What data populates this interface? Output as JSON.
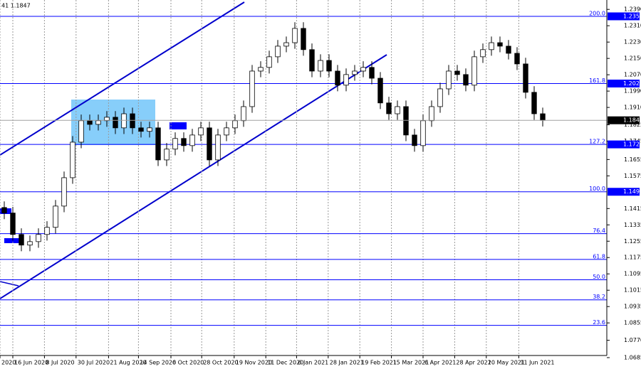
{
  "chart_data": {
    "type": "candlestick",
    "info": "41 1.1847",
    "x": [
      0,
      1,
      2,
      3,
      4,
      5,
      6,
      7,
      8,
      9,
      10,
      11,
      12,
      13,
      14,
      15,
      16,
      17,
      18,
      19,
      20,
      21,
      22,
      23,
      24,
      25,
      26,
      27,
      28,
      29,
      30,
      31,
      32,
      33,
      34,
      35,
      36,
      37,
      38,
      39,
      40,
      41,
      42,
      43,
      44,
      45,
      46,
      47,
      48,
      49,
      50,
      51,
      52,
      53,
      54,
      55,
      56,
      57,
      58,
      59,
      60,
      61,
      62,
      63
    ],
    "open": [
      1.142,
      1.1393,
      1.1288,
      1.1236,
      1.1253,
      1.1288,
      1.1323,
      1.1427,
      1.1566,
      1.174,
      1.1845,
      1.1827,
      1.1845,
      1.1862,
      1.181,
      1.1879,
      1.181,
      1.1793,
      1.181,
      1.1653,
      1.1706,
      1.1758,
      1.1723,
      1.1775,
      1.181,
      1.1653,
      1.1775,
      1.181,
      1.1845,
      1.1914,
      1.2088,
      1.2106,
      1.2158,
      1.221,
      1.2227,
      1.2297,
      1.2193,
      1.2088,
      1.214,
      1.2088,
      1.2019,
      1.2071,
      1.2088,
      1.2106,
      1.2053,
      1.1932,
      1.1879,
      1.1914,
      1.1775,
      1.1723,
      1.1845,
      1.1914,
      1.2001,
      1.2088,
      1.2071,
      1.2019,
      1.2158,
      1.2193,
      1.2227,
      1.221,
      1.2175,
      1.2123,
      1.1984,
      1.1879
    ],
    "high": [
      1.145,
      1.1423,
      1.1318,
      1.1283,
      1.1318,
      1.1353,
      1.1457,
      1.1596,
      1.177,
      1.1875,
      1.1875,
      1.1875,
      1.1892,
      1.1892,
      1.1909,
      1.1909,
      1.184,
      1.184,
      1.184,
      1.1736,
      1.1788,
      1.1788,
      1.1805,
      1.184,
      1.184,
      1.1805,
      1.184,
      1.1875,
      1.1944,
      1.2118,
      1.2136,
      1.2188,
      1.224,
      1.2257,
      1.2327,
      1.2327,
      1.2223,
      1.217,
      1.217,
      1.2118,
      1.2101,
      1.2118,
      1.2136,
      1.2136,
      1.2083,
      1.1962,
      1.1944,
      1.1944,
      1.1805,
      1.1875,
      1.1944,
      1.2031,
      1.2118,
      1.2118,
      1.2101,
      1.2188,
      1.2223,
      1.2257,
      1.2257,
      1.224,
      1.2205,
      1.2153,
      1.2014,
      1.1909
    ],
    "low": [
      1.1363,
      1.1258,
      1.1206,
      1.1206,
      1.1223,
      1.1258,
      1.1293,
      1.1397,
      1.1536,
      1.171,
      1.1797,
      1.1797,
      1.1815,
      1.178,
      1.178,
      1.178,
      1.1763,
      1.1763,
      1.1623,
      1.1623,
      1.1676,
      1.1693,
      1.1693,
      1.1745,
      1.1623,
      1.1623,
      1.1745,
      1.178,
      1.1815,
      1.1884,
      1.2058,
      1.2076,
      1.2128,
      1.218,
      1.2197,
      1.2163,
      1.2058,
      1.2058,
      1.2058,
      1.1989,
      1.1989,
      1.2041,
      1.2058,
      1.2023,
      1.1902,
      1.1849,
      1.1849,
      1.1745,
      1.1693,
      1.1693,
      1.1815,
      1.1884,
      1.1971,
      1.2041,
      1.1989,
      1.1989,
      1.2128,
      1.2163,
      1.218,
      1.2145,
      1.2093,
      1.1954,
      1.1849,
      1.1817
    ],
    "close": [
      1.1393,
      1.1288,
      1.1236,
      1.1253,
      1.1288,
      1.1323,
      1.1427,
      1.1566,
      1.174,
      1.1845,
      1.1827,
      1.1845,
      1.1862,
      1.181,
      1.1879,
      1.181,
      1.1793,
      1.181,
      1.1653,
      1.1706,
      1.1758,
      1.1723,
      1.1775,
      1.181,
      1.1653,
      1.1775,
      1.181,
      1.1845,
      1.1914,
      1.2088,
      1.2106,
      1.2158,
      1.221,
      1.2227,
      1.2297,
      1.2193,
      1.2088,
      1.214,
      1.2088,
      1.2019,
      1.2071,
      1.2088,
      1.2106,
      1.2053,
      1.1932,
      1.1879,
      1.1914,
      1.1775,
      1.1723,
      1.1845,
      1.1914,
      1.2001,
      1.2088,
      1.2071,
      1.2019,
      1.2158,
      1.2193,
      1.2227,
      1.221,
      1.2175,
      1.2123,
      1.1984,
      1.1879,
      1.1847
    ],
    "up_color": "#ffffff",
    "down_color": "#000000",
    "ylim": [
      1.0685,
      1.2436
    ],
    "yticks": [
      {
        "value": 1.239,
        "label": "1.2390"
      },
      {
        "value": 1.231,
        "label": "1.2310"
      },
      {
        "value": 1.223,
        "label": "1.2230"
      },
      {
        "value": 1.215,
        "label": "1.2150"
      },
      {
        "value": 1.207,
        "label": "1.2070"
      },
      {
        "value": 1.199,
        "label": "1.1990"
      },
      {
        "value": 1.191,
        "label": "1.1910"
      },
      1.1825,
      1.1745,
      1.1655,
      1.1575,
      1.1415,
      1.1335,
      1.1255,
      1.1175,
      1.1095,
      1.1015,
      1.0935,
      1.0855,
      {
        "value": 1.077,
        "label": "1.0770"
      },
      1.0685
    ],
    "xlim": [
      -0.5,
      70.5
    ],
    "xticks": [
      {
        "value": -0.5,
        "label": "2020"
      },
      {
        "value": 1,
        "label": "16 Jun 2020"
      },
      {
        "value": 4.7,
        "label": "8 Jul 2020"
      },
      {
        "value": 8.4,
        "label": "30 Jul 2020"
      },
      {
        "value": 12.2,
        "label": "21 Aug 2020"
      },
      {
        "value": 15.7,
        "label": "14 Sep 2020"
      },
      {
        "value": 19.5,
        "label": "6 Oct 2020"
      },
      {
        "value": 23.1,
        "label": "28 Oct 2020"
      },
      {
        "value": 26.9,
        "label": "19 Nov 2020"
      },
      {
        "value": 30.6,
        "label": "11 Dec 2020"
      },
      {
        "value": 34.2,
        "label": "6 Jan 2021"
      },
      {
        "value": 37.9,
        "label": "28 Jan 2021"
      },
      {
        "value": 41.6,
        "label": "19 Feb 2021"
      },
      {
        "value": 45.3,
        "label": "15 Mar 2021"
      },
      {
        "value": 49,
        "label": "6 Apr 2021"
      },
      {
        "value": 52.7,
        "label": "28 Apr 2021"
      },
      {
        "value": 56.4,
        "label": "20 May 2021"
      },
      {
        "value": 60.2,
        "label": "11 Jun 2021"
      }
    ],
    "grid": "x",
    "fib_color": "#0000ff",
    "fib_levels": [
      {
        "label": "200.0",
        "value": 1.2356,
        "boxed": true
      },
      {
        "label": "161.8",
        "value": 1.2027,
        "boxed": true
      },
      {
        "label": "127.2",
        "value": 1.1729,
        "boxed": true
      },
      {
        "label": "100.0",
        "value": 1.1497,
        "boxed": true
      },
      {
        "label": "76.4",
        "value": 1.1292,
        "boxed": false
      },
      {
        "label": "61.8",
        "value": 1.1166,
        "boxed": false
      },
      {
        "label": "50.0",
        "value": 1.1066,
        "boxed": false
      },
      {
        "label": "38.2",
        "value": 1.0968,
        "boxed": false
      },
      {
        "label": "23.6",
        "value": 1.0843,
        "boxed": false
      }
    ]
  }
}
